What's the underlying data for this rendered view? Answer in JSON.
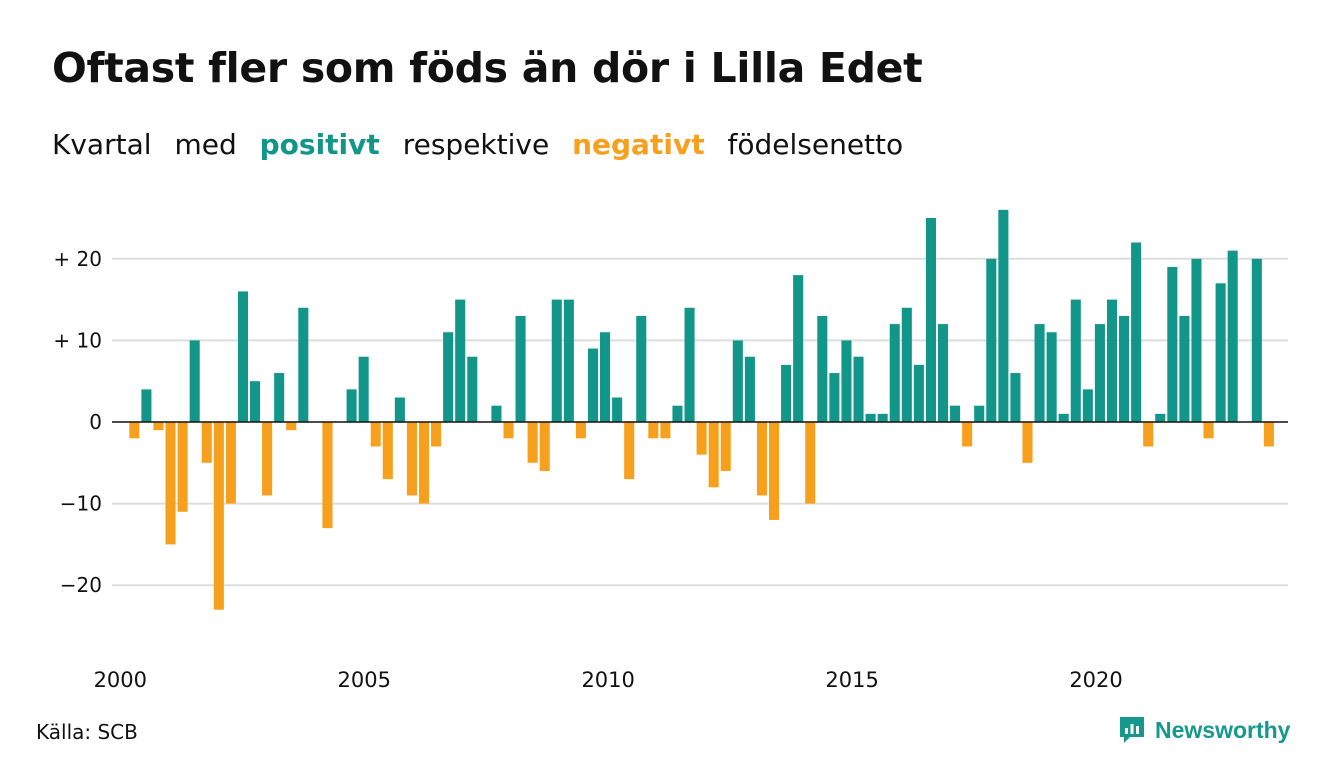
{
  "title": "Oftast fler som föds än dör i Lilla Edet",
  "subtitle": {
    "w1": "Kvartal",
    "w2": "med",
    "positive": "positivt",
    "w3": "respektive",
    "negative": "negativt",
    "w4": "födelsenetto"
  },
  "source": "Källa: SCB",
  "brand": "Newsworthy",
  "colors": {
    "positive": "#13968a",
    "negative": "#f6a01d",
    "grid": "#dddddd",
    "axis": "#111111",
    "brand": "#15998c"
  },
  "chart_data": {
    "type": "bar",
    "x_start": 2000,
    "x_end": 2023.75,
    "ylim": [
      -25,
      30
    ],
    "yticks": [
      {
        "value": 20,
        "label": "+ 20"
      },
      {
        "value": 10,
        "label": "+ 10"
      },
      {
        "value": 0,
        "label": "0"
      },
      {
        "value": -10,
        "label": "−10"
      },
      {
        "value": -20,
        "label": "−20"
      }
    ],
    "xticks": [
      {
        "value": 2000,
        "label": "2000"
      },
      {
        "value": 2005,
        "label": "2005"
      },
      {
        "value": 2010,
        "label": "2010"
      },
      {
        "value": 2015,
        "label": "2015"
      },
      {
        "value": 2020,
        "label": "2020"
      }
    ],
    "grid": true,
    "categories": [
      "2000 K1",
      "2000 K2",
      "2000 K3",
      "2000 K4",
      "2001 K1",
      "2001 K2",
      "2001 K3",
      "2001 K4",
      "2002 K1",
      "2002 K2",
      "2002 K3",
      "2002 K4",
      "2003 K1",
      "2003 K2",
      "2003 K3",
      "2003 K4",
      "2004 K1",
      "2004 K2",
      "2004 K3",
      "2004 K4",
      "2005 K1",
      "2005 K2",
      "2005 K3",
      "2005 K4",
      "2006 K1",
      "2006 K2",
      "2006 K3",
      "2006 K4",
      "2007 K1",
      "2007 K2",
      "2007 K3",
      "2007 K4",
      "2008 K1",
      "2008 K2",
      "2008 K3",
      "2008 K4",
      "2009 K1",
      "2009 K2",
      "2009 K3",
      "2009 K4",
      "2010 K1",
      "2010 K2",
      "2010 K3",
      "2010 K4",
      "2011 K1",
      "2011 K2",
      "2011 K3",
      "2011 K4",
      "2012 K1",
      "2012 K2",
      "2012 K3",
      "2012 K4",
      "2013 K1",
      "2013 K2",
      "2013 K3",
      "2013 K4",
      "2014 K1",
      "2014 K2",
      "2014 K3",
      "2014 K4",
      "2015 K1",
      "2015 K2",
      "2015 K3",
      "2015 K4",
      "2016 K1",
      "2016 K2",
      "2016 K3",
      "2016 K4",
      "2017 K1",
      "2017 K2",
      "2017 K3",
      "2017 K4",
      "2018 K1",
      "2018 K2",
      "2018 K3",
      "2018 K4",
      "2019 K1",
      "2019 K2",
      "2019 K3",
      "2019 K4",
      "2020 K1",
      "2020 K2",
      "2020 K3",
      "2020 K4",
      "2021 K1",
      "2021 K2",
      "2021 K3",
      "2021 K4",
      "2022 K1",
      "2022 K2",
      "2022 K3",
      "2022 K4",
      "2023 K1",
      "2023 K2",
      "2023 K3",
      "2023 K4"
    ],
    "values": [
      -2,
      4,
      -1,
      -15,
      -11,
      10,
      -5,
      -23,
      -10,
      16,
      5,
      -9,
      6,
      -1,
      14,
      0,
      -13,
      0,
      4,
      8,
      -3,
      -7,
      3,
      -9,
      -10,
      -3,
      11,
      15,
      8,
      0,
      2,
      -2,
      13,
      -5,
      -6,
      15,
      15,
      -2,
      9,
      11,
      3,
      -7,
      13,
      -2,
      -2,
      2,
      14,
      -4,
      -8,
      -6,
      10,
      8,
      -9,
      -12,
      7,
      18,
      -10,
      13,
      6,
      10,
      8,
      1,
      1,
      12,
      14,
      7,
      25,
      12,
      2,
      -3,
      2,
      20,
      26,
      6,
      -5,
      12,
      11,
      1,
      15,
      4,
      12,
      15,
      13,
      22,
      -3,
      1,
      19,
      13,
      20,
      -2,
      17,
      21,
      0,
      20,
      -3,
      0
    ]
  }
}
